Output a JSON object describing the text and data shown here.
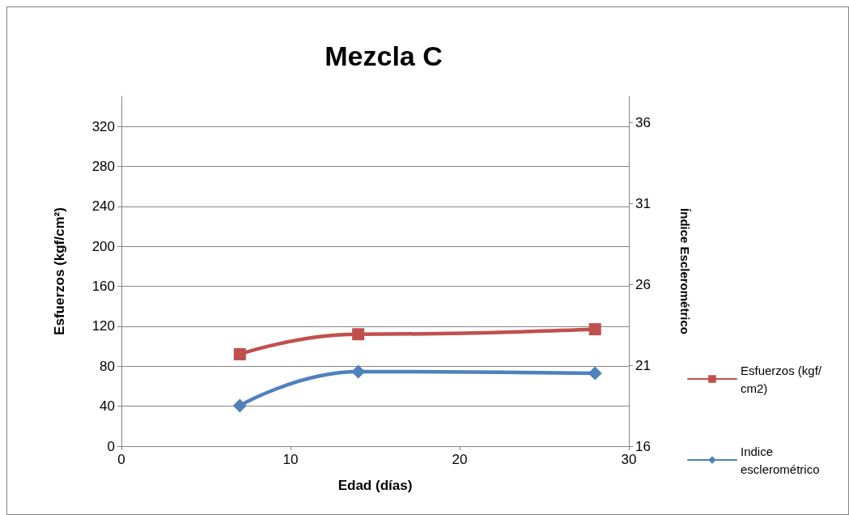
{
  "chart_data": {
    "type": "line",
    "title": "Mezcla C",
    "xlabel": "Edad (días)",
    "ylabel": "Esfuerzos (kgf/cm²)",
    "y2label": "Índice Esclerométrico",
    "xlim": [
      0,
      30
    ],
    "xticks": [
      0,
      10,
      20,
      30
    ],
    "ylim": [
      0,
      350
    ],
    "yticks": [
      0,
      40,
      80,
      120,
      160,
      200,
      240,
      280,
      320
    ],
    "y2lim": [
      16,
      37.6
    ],
    "y2ticks": [
      16,
      21,
      26,
      31,
      36
    ],
    "grid": "y",
    "legend": "right",
    "line_style": "solid",
    "series": [
      {
        "name": "Esfuerzos (kgf/cm2)",
        "color": "#c0504d",
        "marker": "square",
        "x": [
          7,
          14,
          28
        ],
        "values": [
          92,
          112,
          117
        ]
      },
      {
        "name": "Indice esclerométrico",
        "color": "#4f81bd",
        "marker": "diamond",
        "axis": "y2",
        "x": [
          7,
          14,
          28
        ],
        "values": [
          18.5,
          20.6,
          20.5
        ]
      }
    ]
  }
}
